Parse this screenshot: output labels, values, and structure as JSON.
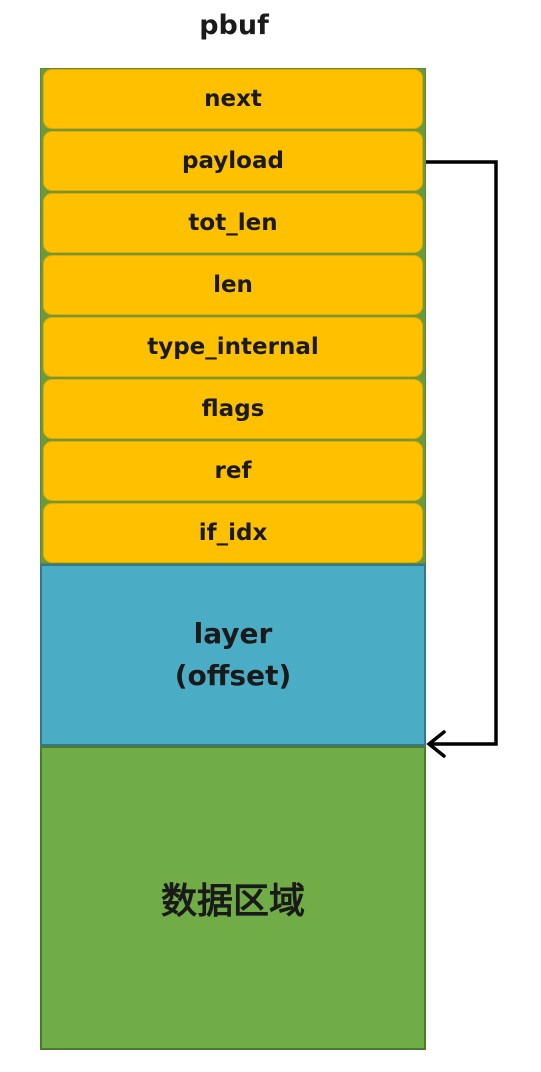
{
  "diagram": {
    "title": "pbuf",
    "fields": [
      {
        "label": "next"
      },
      {
        "label": "payload"
      },
      {
        "label": "tot_len"
      },
      {
        "label": "len"
      },
      {
        "label": "type_internal"
      },
      {
        "label": "flags"
      },
      {
        "label": "ref"
      },
      {
        "label": "if_idx"
      }
    ],
    "layer": {
      "line1": "layer",
      "line2": "(offset)"
    },
    "data_region": {
      "label": "数据区域"
    },
    "arrow": {
      "from": "payload",
      "to": "数据区域"
    },
    "colors": {
      "field_fill": "#ffc000",
      "layer_fill": "#4bacc6",
      "data_fill": "#70ad47",
      "arrow": "#000000"
    }
  }
}
